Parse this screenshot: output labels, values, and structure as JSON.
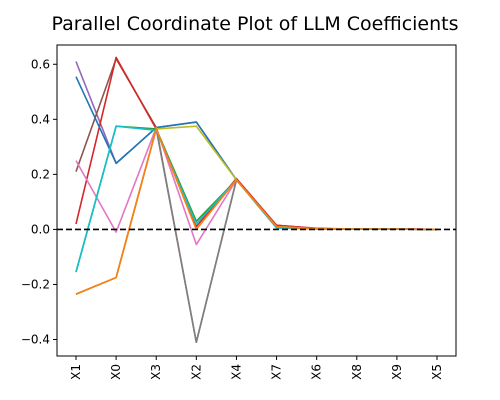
{
  "chart_data": {
    "type": "line",
    "title": "Parallel Coordinate Plot of LLM Coefficients",
    "xlabel": "",
    "ylabel": "",
    "categories": [
      "X1",
      "X0",
      "X3",
      "X2",
      "X4",
      "X7",
      "X6",
      "X8",
      "X9",
      "X5"
    ],
    "ylim": [
      -0.46,
      0.67
    ],
    "yticks": [
      -0.4,
      -0.2,
      0.0,
      0.2,
      0.4,
      0.6
    ],
    "ytick_labels": [
      "−0.4",
      "−0.2",
      "0.0",
      "0.2",
      "0.4",
      "0.6"
    ],
    "grid": false,
    "reference_line": {
      "y": 0.0,
      "color": "#000000",
      "style": "dashed"
    },
    "series": [
      {
        "color": "#9467bd",
        "values": [
          0.61,
          0.24,
          0.37,
          0.39,
          0.18,
          0.01,
          0.003,
          0.001,
          0.002,
          0.0
        ]
      },
      {
        "color": "#8c564b",
        "values": [
          0.21,
          0.62,
          0.37,
          -0.41,
          0.18,
          0.015,
          0.003,
          0.001,
          0.001,
          0.0
        ]
      },
      {
        "color": "#d62728",
        "values": [
          0.02,
          0.625,
          0.365,
          0.01,
          0.185,
          0.015,
          0.004,
          0.001,
          0.002,
          0.0
        ]
      },
      {
        "color": "#1f77b4",
        "values": [
          0.555,
          0.24,
          0.37,
          0.39,
          0.18,
          0.01,
          0.002,
          0.001,
          0.001,
          0.0
        ]
      },
      {
        "color": "#e377c2",
        "values": [
          0.25,
          -0.01,
          0.37,
          -0.055,
          0.18,
          0.01,
          0.002,
          0.001,
          0.001,
          0.0
        ]
      },
      {
        "color": "#2ca02c",
        "values": [
          -0.155,
          0.375,
          0.365,
          0.03,
          0.18,
          0.01,
          0.002,
          0.001,
          0.001,
          0.0
        ]
      },
      {
        "color": "#17becf",
        "values": [
          -0.155,
          0.375,
          0.36,
          0.02,
          0.18,
          0.005,
          0.002,
          0.001,
          0.001,
          0.0
        ]
      },
      {
        "color": "#bcbd22",
        "values": [
          -0.235,
          -0.175,
          0.365,
          0.375,
          0.18,
          0.01,
          0.002,
          0.001,
          0.001,
          0.0
        ]
      },
      {
        "color": "#7f7f7f",
        "values": [
          -0.235,
          -0.175,
          0.365,
          -0.41,
          0.18,
          0.01,
          0.002,
          0.001,
          0.001,
          0.0
        ]
      },
      {
        "color": "#ff7f0e",
        "values": [
          -0.235,
          -0.175,
          0.365,
          0.0,
          0.18,
          0.01,
          0.002,
          0.001,
          0.001,
          0.0
        ]
      }
    ]
  }
}
